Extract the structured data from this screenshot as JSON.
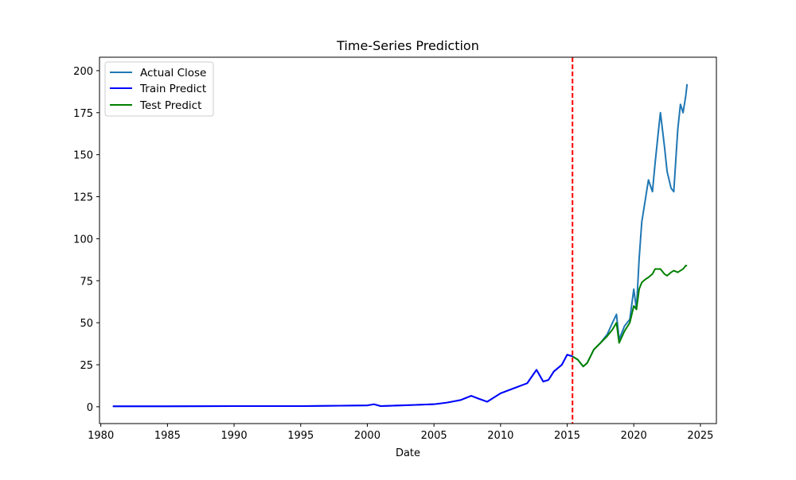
{
  "chart_data": {
    "type": "line",
    "title": "Time-Series Prediction",
    "xlabel": "Date",
    "ylabel": "",
    "xlim": [
      1979.9,
      2026.2
    ],
    "ylim": [
      -10,
      208
    ],
    "x_ticks": [
      1980,
      1985,
      1990,
      1995,
      2000,
      2005,
      2010,
      2015,
      2020,
      2025
    ],
    "y_ticks": [
      0,
      25,
      50,
      75,
      100,
      125,
      150,
      175,
      200
    ],
    "grid": false,
    "legend_position": "top-left",
    "split_marker": {
      "x": 2015.4,
      "color": "#ff0000",
      "style": "dashed"
    },
    "series": [
      {
        "name": "Actual Close",
        "color": "#1f77b4",
        "x": [
          1980.9,
          1985,
          1990,
          1995,
          2000,
          2000.5,
          2001,
          2005,
          2006,
          2007,
          2007.8,
          2008.3,
          2009,
          2010,
          2011,
          2012,
          2012.7,
          2013.2,
          2013.6,
          2014,
          2014.6,
          2015.0,
          2015.4,
          2015.8,
          2016.2,
          2016.5,
          2017.0,
          2017.5,
          2018.0,
          2018.4,
          2018.7,
          2018.9,
          2019.3,
          2019.7,
          2020.0,
          2020.2,
          2020.4,
          2020.6,
          2020.9,
          2021.1,
          2021.4,
          2021.6,
          2021.9,
          2022.0,
          2022.3,
          2022.5,
          2022.8,
          2023.0,
          2023.3,
          2023.5,
          2023.7,
          2023.9,
          2024.0
        ],
        "values": [
          0.3,
          0.3,
          0.4,
          0.4,
          0.8,
          1.5,
          0.4,
          1.5,
          2.5,
          4,
          6.5,
          5,
          3,
          8,
          11,
          14,
          22,
          15,
          16,
          21,
          25,
          31,
          30,
          28,
          24,
          26,
          34,
          38,
          43,
          50,
          55,
          40,
          48,
          52,
          70,
          58,
          88,
          110,
          125,
          135,
          128,
          145,
          168,
          175,
          155,
          140,
          130,
          128,
          165,
          180,
          175,
          185,
          192
        ]
      },
      {
        "name": "Train Predict",
        "color": "#0000ff",
        "x": [
          1980.9,
          1985,
          1990,
          1995,
          2000,
          2000.5,
          2001,
          2005,
          2006,
          2007,
          2007.8,
          2008.3,
          2009,
          2010,
          2011,
          2012,
          2012.7,
          2013.2,
          2013.6,
          2014,
          2014.6,
          2015.0,
          2015.4
        ],
        "values": [
          0.3,
          0.3,
          0.4,
          0.4,
          0.8,
          1.5,
          0.4,
          1.5,
          2.5,
          4,
          6.5,
          5,
          3,
          8,
          11,
          14,
          22,
          15,
          16,
          21,
          25,
          31,
          30
        ]
      },
      {
        "name": "Test Predict",
        "color": "#008000",
        "x": [
          2015.4,
          2015.8,
          2016.2,
          2016.5,
          2017.0,
          2017.5,
          2018.0,
          2018.4,
          2018.7,
          2018.9,
          2019.3,
          2019.7,
          2020.0,
          2020.2,
          2020.4,
          2020.6,
          2020.9,
          2021.1,
          2021.4,
          2021.6,
          2021.9,
          2022.0,
          2022.3,
          2022.5,
          2022.8,
          2023.0,
          2023.3,
          2023.5,
          2023.7,
          2023.9,
          2024.0
        ],
        "values": [
          30,
          28,
          24,
          26,
          34,
          38,
          42,
          46,
          50,
          38,
          45,
          50,
          60,
          58,
          70,
          74,
          76,
          77,
          79,
          82,
          82,
          82,
          79,
          78,
          80,
          81,
          80,
          81,
          82,
          84,
          84
        ]
      }
    ]
  }
}
